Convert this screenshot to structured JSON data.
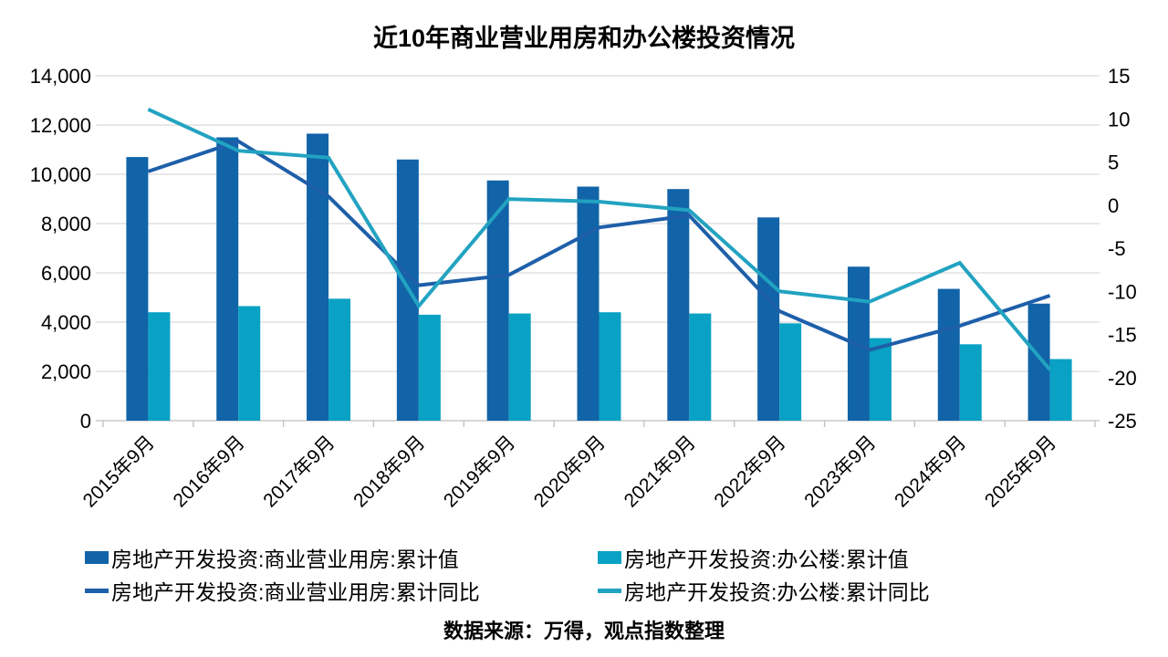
{
  "title": "近10年商业营业用房和办公楼投资情况",
  "source": "数据来源：万得，观点指数整理",
  "colors": {
    "bar_dark": "#1164A8",
    "bar_light": "#09A2C4",
    "line_dark": "#1E5FA9",
    "line_light": "#22A3C1",
    "grid": "#D9D9D9",
    "axis_line": "#BFBFBF",
    "axis_text": "#000000"
  },
  "chart_data": {
    "type": "combo (bar + line)",
    "title": "近10年商业营业用房和办公楼投资情况",
    "categories": [
      "2015年9月",
      "2016年9月",
      "2017年9月",
      "2018年9月",
      "2019年9月",
      "2020年9月",
      "2021年9月",
      "2022年9月",
      "2023年9月",
      "2024年9月",
      "2025年9月"
    ],
    "left_axis": {
      "min": 0,
      "max": 14000,
      "step": 2000,
      "tick_labels": [
        "0",
        "2,000",
        "4,000",
        "6,000",
        "8,000",
        "10,000",
        "12,000",
        "14,000"
      ]
    },
    "right_axis": {
      "min": -25,
      "max": 15,
      "step": 5,
      "tick_labels": [
        "-25",
        "-20",
        "-15",
        "-10",
        "-5",
        "0",
        "5",
        "10",
        "15"
      ]
    },
    "grid": "horizontal",
    "legend_position": "bottom",
    "series": [
      {
        "name": "房地产开发投资:商业营业用房:累计值",
        "type": "bar",
        "axis": "left",
        "color_key": "bar_dark",
        "values": [
          10700,
          11500,
          11650,
          10600,
          9750,
          9500,
          9400,
          8250,
          6250,
          5350,
          4750
        ]
      },
      {
        "name": "房地产开发投资:办公楼:累计值",
        "type": "bar",
        "axis": "left",
        "color_key": "bar_light",
        "values": [
          4400,
          4650,
          4950,
          4300,
          4350,
          4400,
          4350,
          3950,
          3350,
          3100,
          2500
        ]
      },
      {
        "name": "房地产开发投资:商业营业用房:累计同比",
        "type": "line",
        "axis": "right",
        "color_key": "line_dark",
        "values": [
          3.9,
          7.4,
          1.0,
          -9.3,
          -8.1,
          -2.6,
          -1.2,
          -12.3,
          -16.8,
          -14.0,
          -10.5
        ]
      },
      {
        "name": "房地产开发投资:办公楼:累计同比",
        "type": "line",
        "axis": "right",
        "color_key": "line_light",
        "values": [
          11.1,
          6.3,
          5.5,
          -11.7,
          0.7,
          0.4,
          -0.6,
          -10.0,
          -11.2,
          -6.7,
          -19.1
        ]
      }
    ]
  }
}
